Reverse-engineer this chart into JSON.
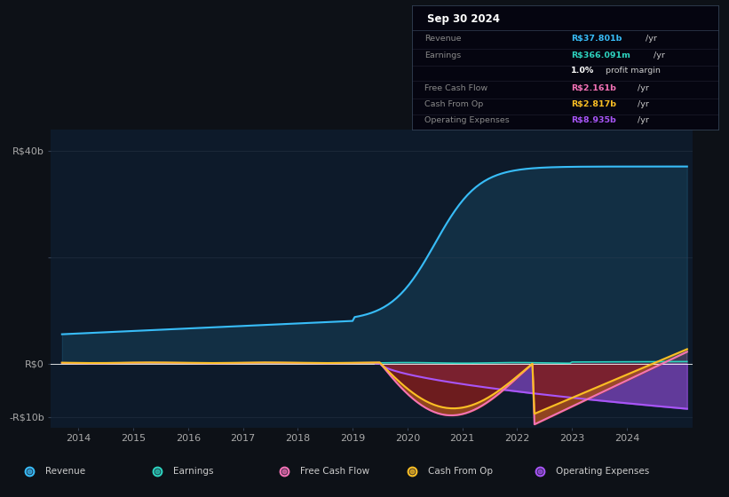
{
  "bg_color": "#0d1117",
  "plot_bg_color": "#0d1a2a",
  "title": "Sep 30 2024",
  "ylim": [
    -12,
    44
  ],
  "xlim_start": 2013.5,
  "xlim_end": 2025.2,
  "xtick_labels": [
    "2014",
    "2015",
    "2016",
    "2017",
    "2018",
    "2019",
    "2020",
    "2021",
    "2022",
    "2023",
    "2024"
  ],
  "xtick_values": [
    2014,
    2015,
    2016,
    2017,
    2018,
    2019,
    2020,
    2021,
    2022,
    2023,
    2024
  ],
  "legend": [
    {
      "label": "Revenue",
      "color": "#38bdf8"
    },
    {
      "label": "Earnings",
      "color": "#2dd4bf"
    },
    {
      "label": "Free Cash Flow",
      "color": "#f472b6"
    },
    {
      "label": "Cash From Op",
      "color": "#fbbf24"
    },
    {
      "label": "Operating Expenses",
      "color": "#a855f7"
    }
  ],
  "info_rows": [
    {
      "label": "Revenue",
      "value": "R$37.801b",
      "suffix": " /yr",
      "vcolor": "#38bdf8"
    },
    {
      "label": "Earnings",
      "value": "R$366.091m",
      "suffix": " /yr",
      "vcolor": "#2dd4bf"
    },
    {
      "label": "",
      "value": "1.0%",
      "suffix": " profit margin",
      "vcolor": "white"
    },
    {
      "label": "Free Cash Flow",
      "value": "R$2.161b",
      "suffix": " /yr",
      "vcolor": "#f472b6"
    },
    {
      "label": "Cash From Op",
      "value": "R$2.817b",
      "suffix": " /yr",
      "vcolor": "#fbbf24"
    },
    {
      "label": "Operating Expenses",
      "value": "R$8.935b",
      "suffix": " /yr",
      "vcolor": "#a855f7"
    }
  ],
  "rev_color": "#38bdf8",
  "earn_color": "#2dd4bf",
  "fcf_color": "#f472b6",
  "cfo_color": "#fbbf24",
  "opex_color": "#a855f7",
  "dark_red": "#7f1d1d"
}
